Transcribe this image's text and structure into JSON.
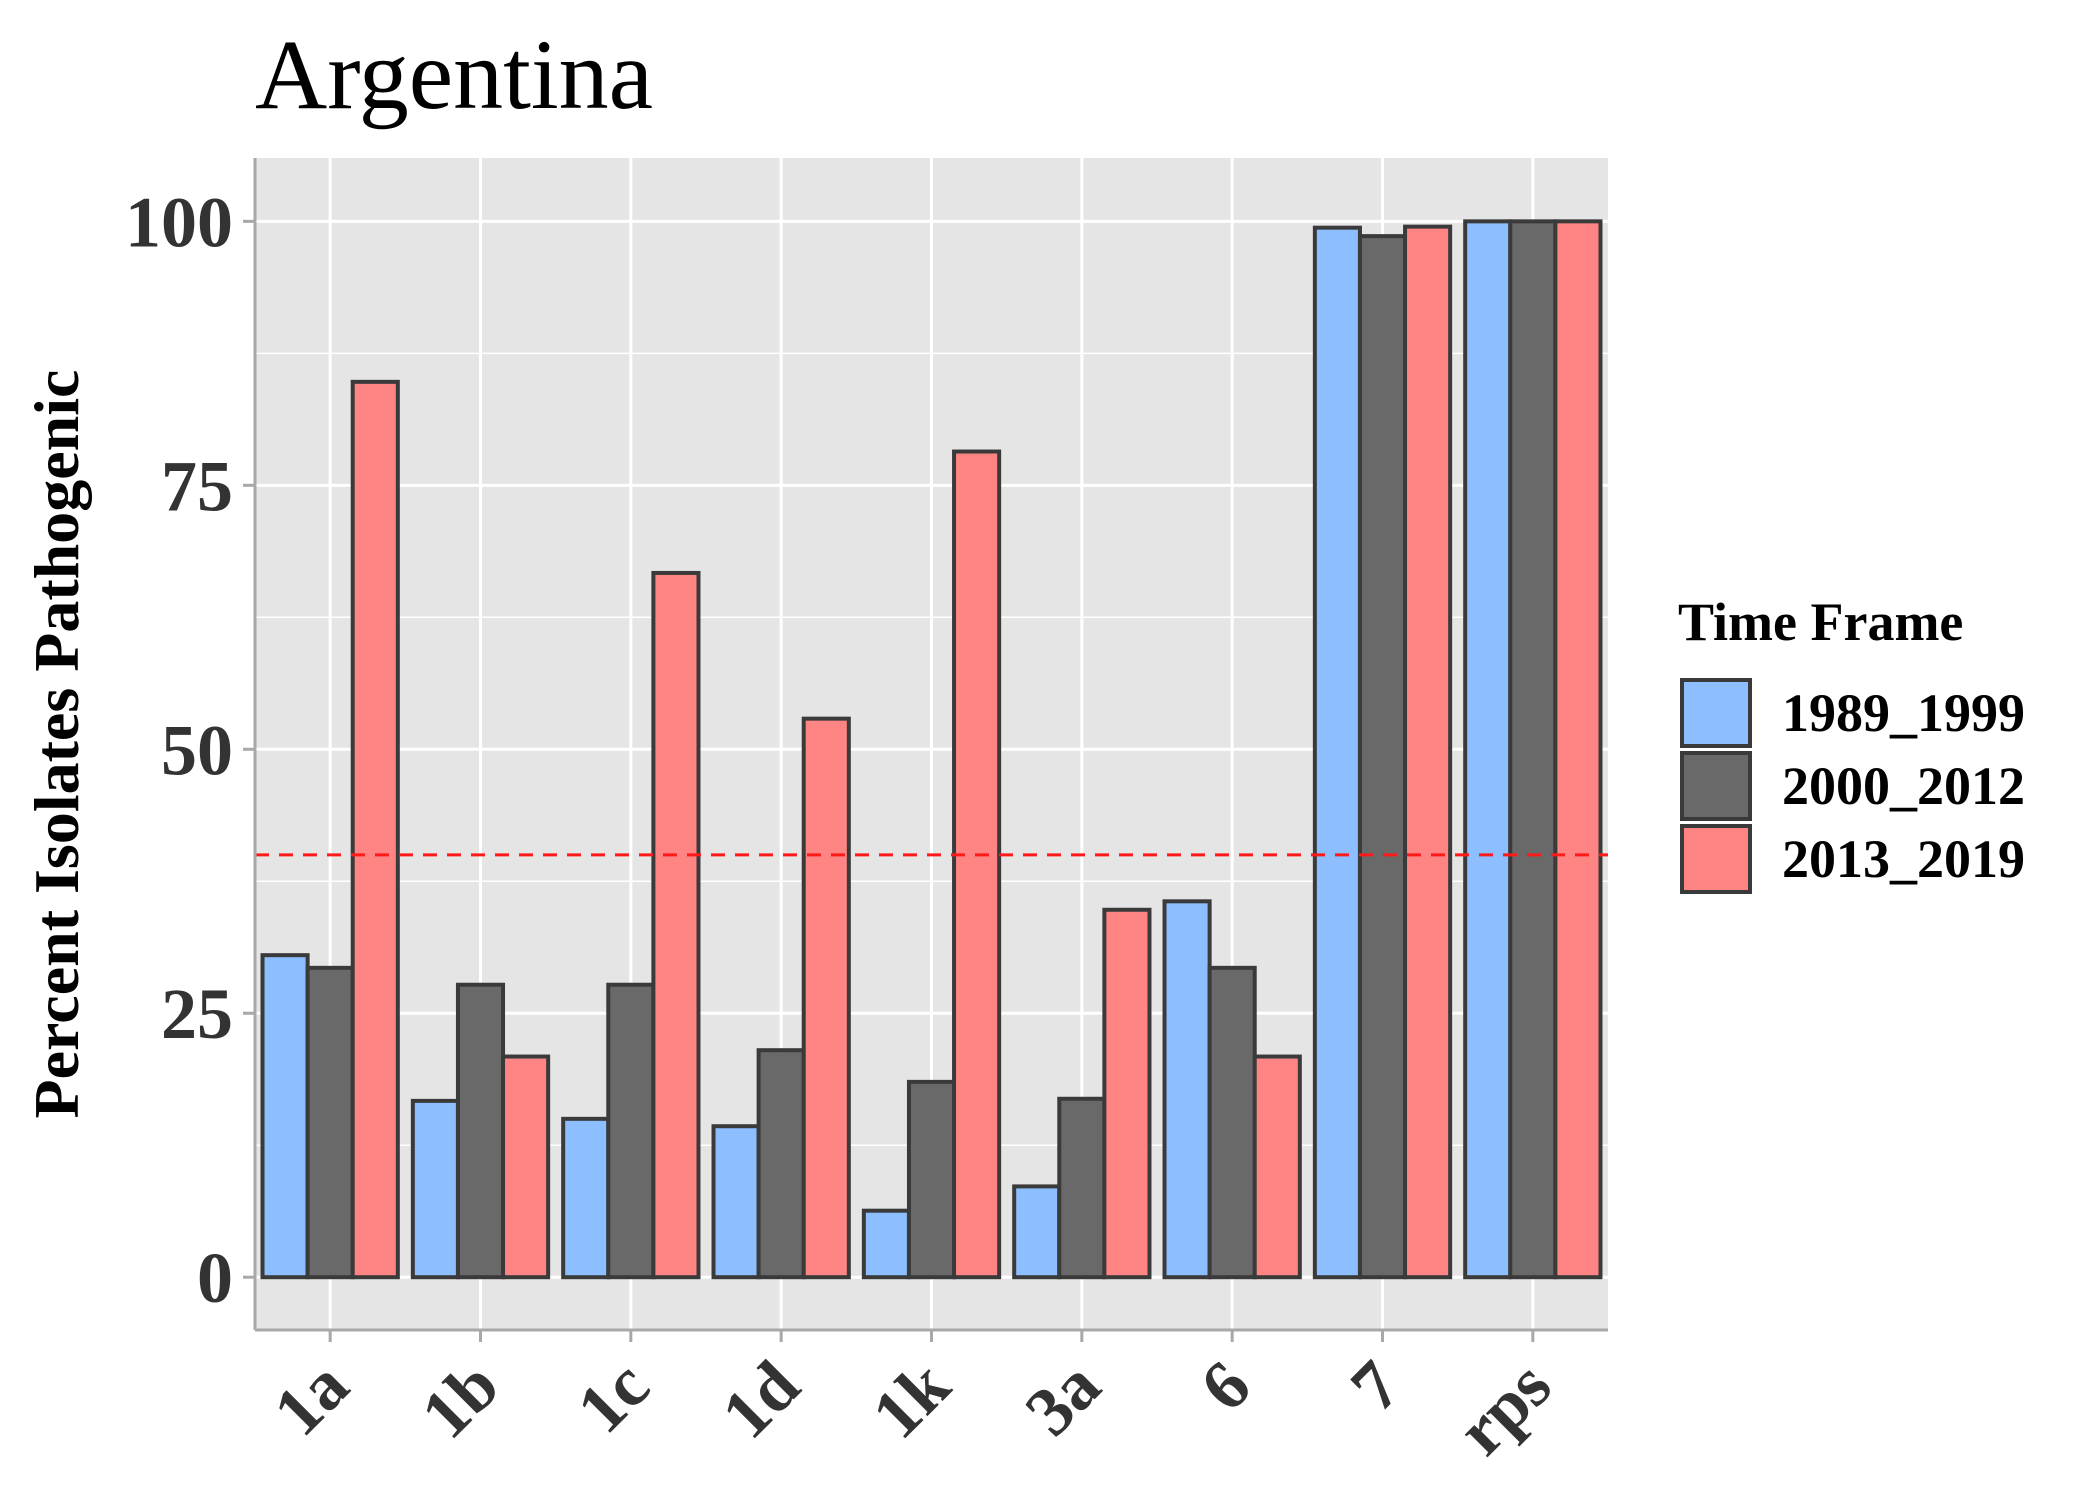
{
  "chart_data": {
    "type": "bar",
    "title": "Argentina",
    "xlabel": "",
    "ylabel": "Percent Isolates Pathogenic",
    "ylim": [
      -5,
      106
    ],
    "yticks": [
      0,
      25,
      50,
      75,
      100
    ],
    "grid": true,
    "categories": [
      "1a",
      "1b",
      "1c",
      "1d",
      "1k",
      "3a",
      "6",
      "7",
      "rps"
    ],
    "series": [
      {
        "name": "1989_1999",
        "color": "#8DBEFF",
        "values": [
          30.5,
          16.7,
          15.0,
          14.3,
          6.3,
          8.6,
          35.6,
          99.4,
          100
        ]
      },
      {
        "name": "2000_2012",
        "color": "#696969",
        "values": [
          29.3,
          27.7,
          27.7,
          21.5,
          18.5,
          16.9,
          29.3,
          98.6,
          100
        ]
      },
      {
        "name": "2013_2019",
        "color": "#FF8585",
        "values": [
          84.8,
          20.9,
          66.7,
          52.9,
          78.2,
          34.8,
          20.9,
          99.5,
          100
        ]
      }
    ],
    "reference_line": {
      "y": 40,
      "color": "#FF1A1A",
      "style": "dashed"
    },
    "legend": {
      "title": "Time Frame",
      "position": "right"
    },
    "bar_border_color": "#3A3A3A",
    "panel_background": "#E5E5E5",
    "grid_color": "#FFFFFF"
  }
}
